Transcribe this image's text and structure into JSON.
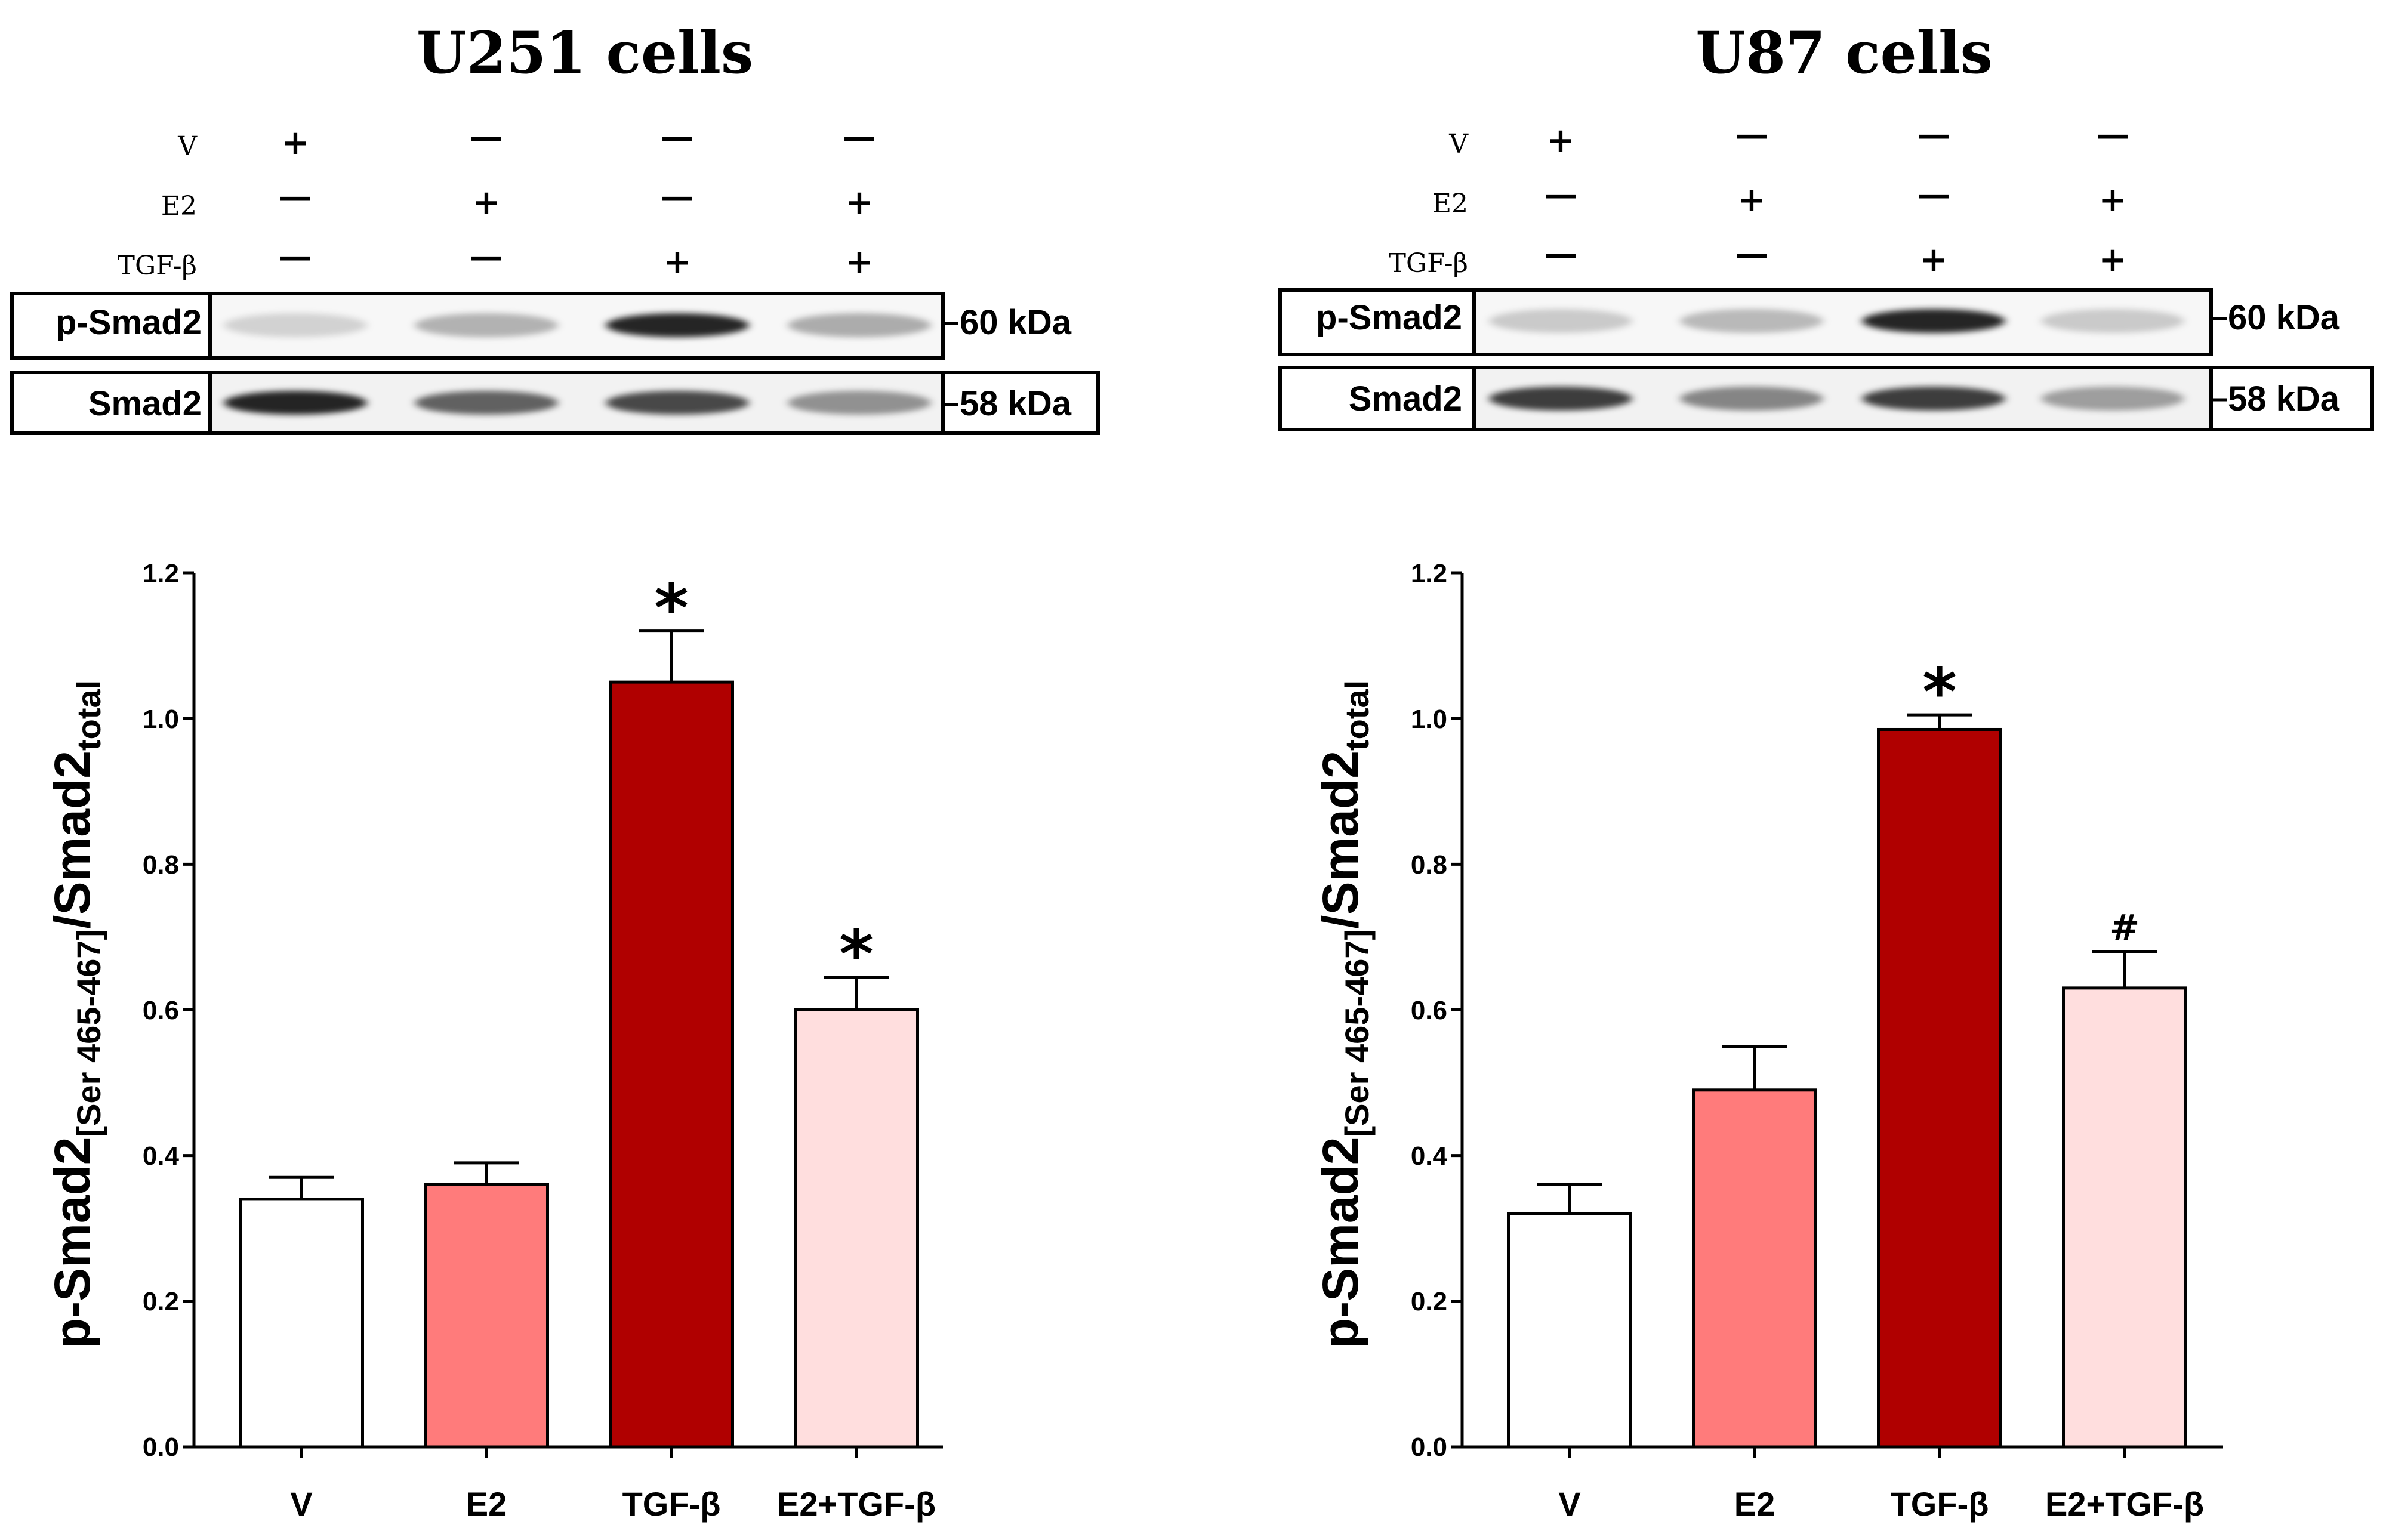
{
  "panels": [
    {
      "title": "U251 cells",
      "treatments": [
        {
          "label": "V",
          "marks": [
            "+",
            "—",
            "—",
            "—"
          ]
        },
        {
          "label": "E2",
          "marks": [
            "—",
            "+",
            "—",
            "+"
          ]
        },
        {
          "label": "TGF-β",
          "marks": [
            "—",
            "—",
            "+",
            "+"
          ]
        }
      ],
      "blots": [
        {
          "name": "p-Smad2",
          "size": "60 kDa",
          "intensity": [
            0.15,
            0.28,
            0.85,
            0.3
          ]
        },
        {
          "name": "Smad2",
          "size": "58 kDa",
          "intensity": [
            0.85,
            0.6,
            0.7,
            0.4
          ]
        }
      ]
    },
    {
      "title": "U87 cells",
      "treatments": [
        {
          "label": "V",
          "marks": [
            "+",
            "—",
            "—",
            "—"
          ]
        },
        {
          "label": "E2",
          "marks": [
            "—",
            "+",
            "—",
            "+"
          ]
        },
        {
          "label": "TGF-β",
          "marks": [
            "—",
            "—",
            "+",
            "+"
          ]
        }
      ],
      "blots": [
        {
          "name": "p-Smad2",
          "size": "60 kDa",
          "intensity": [
            0.18,
            0.25,
            0.85,
            0.18
          ]
        },
        {
          "name": "Smad2",
          "size": "58 kDa",
          "intensity": [
            0.75,
            0.45,
            0.75,
            0.35
          ]
        }
      ]
    }
  ],
  "chart_data": [
    {
      "type": "bar",
      "categories": [
        "V",
        "E2",
        "TGF-β",
        "E2+TGF-β"
      ],
      "values": [
        0.34,
        0.36,
        1.05,
        0.6
      ],
      "errors": [
        0.03,
        0.03,
        0.07,
        0.045
      ],
      "annotations": [
        "",
        "",
        "*",
        "*"
      ],
      "colors": [
        "#ffffff",
        "#ff7b7b",
        "#b00000",
        "#ffdede"
      ],
      "ylabel": "p-Smad2",
      "ylabel_sub": "[Ser 465-467]",
      "ylabel_mid": "/Smad2",
      "ylabel_sub2": "total",
      "ylim": [
        0,
        1.2
      ],
      "yticks": [
        "0.0",
        "0.2",
        "0.4",
        "0.6",
        "0.8",
        "1.0",
        "1.2"
      ]
    },
    {
      "type": "bar",
      "categories": [
        "V",
        "E2",
        "TGF-β",
        "E2+TGF-β"
      ],
      "values": [
        0.32,
        0.49,
        0.985,
        0.63
      ],
      "errors": [
        0.04,
        0.06,
        0.02,
        0.05
      ],
      "annotations": [
        "",
        "",
        "*",
        "#"
      ],
      "colors": [
        "#ffffff",
        "#ff7b7b",
        "#b00000",
        "#ffdede"
      ],
      "ylabel": "p-Smad2",
      "ylabel_sub": "[Ser 465-467]",
      "ylabel_mid": "/Smad2",
      "ylabel_sub2": "total",
      "ylim": [
        0,
        1.2
      ],
      "yticks": [
        "0.0",
        "0.2",
        "0.4",
        "0.6",
        "0.8",
        "1.0",
        "1.2"
      ]
    }
  ]
}
